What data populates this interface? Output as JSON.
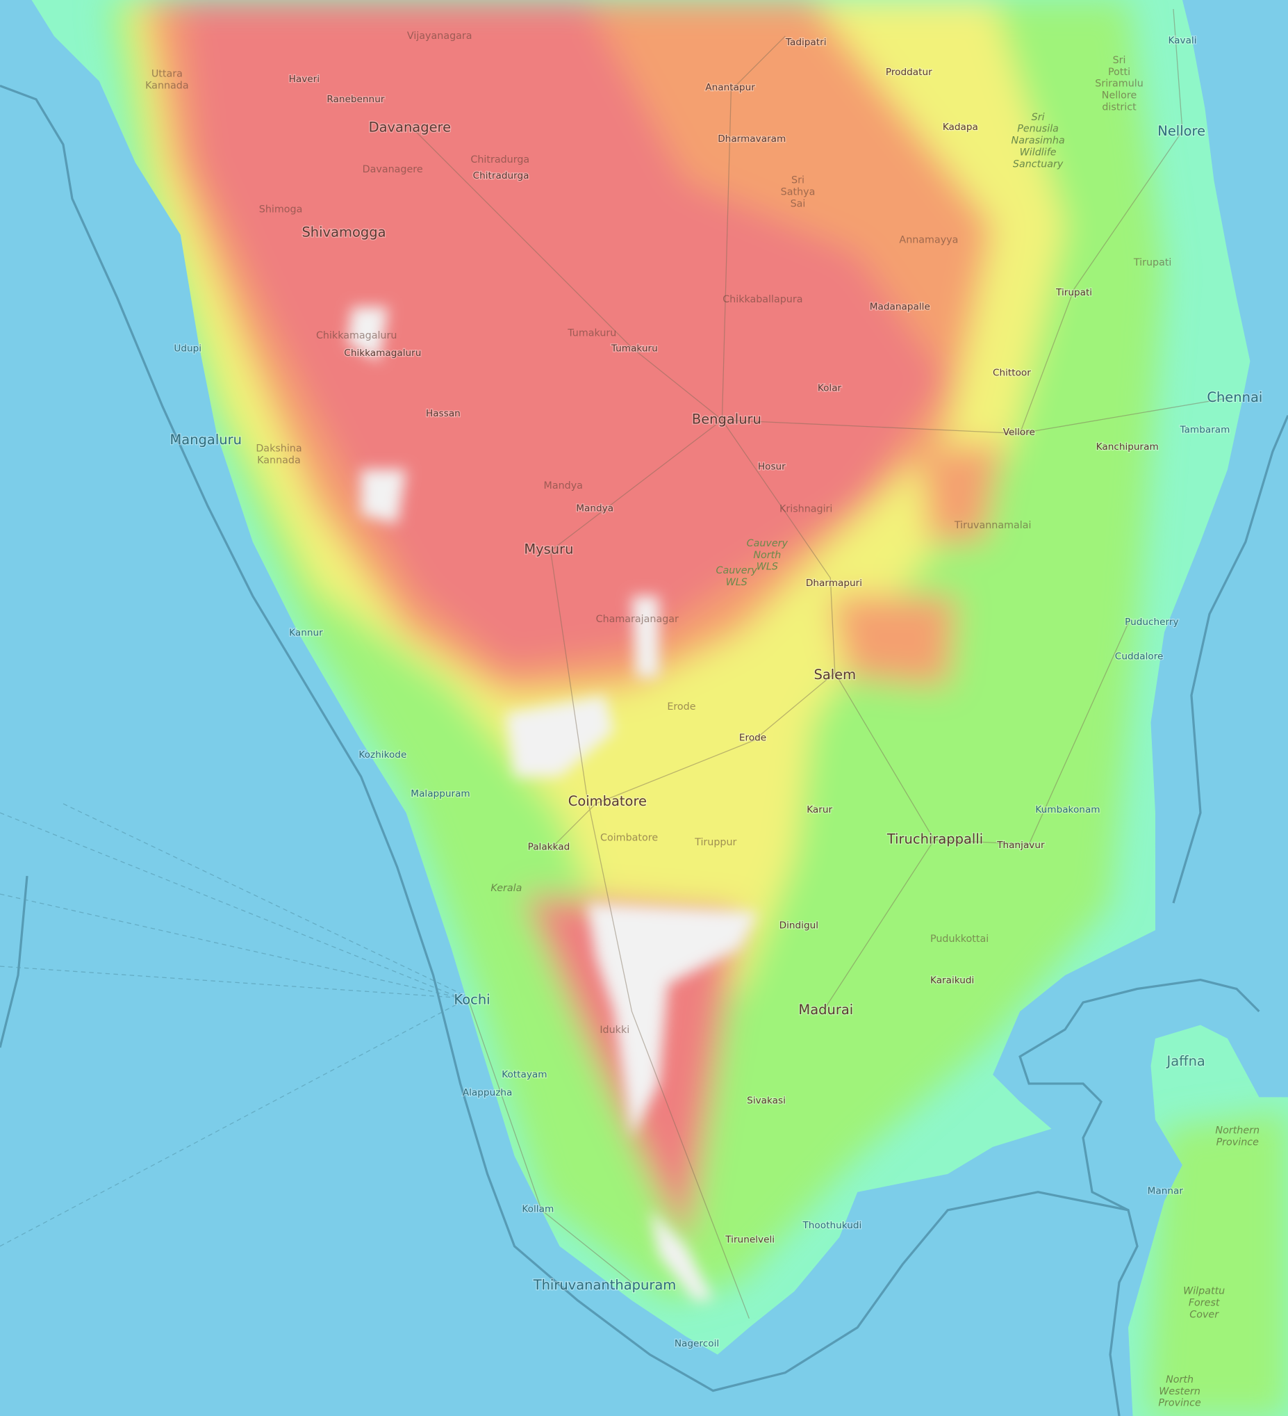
{
  "map": {
    "type": "topographic",
    "colors": {
      "sea": "#7ccde9",
      "lowland": "#8ff7c8",
      "plain": "#9ff37a",
      "midland": "#f2f27a",
      "upland": "#f4a070",
      "highland": "#ef7f7f",
      "peak": "#f2f2f2",
      "boundary": "#4d8fa8"
    },
    "labels": [
      "Vijayanagara",
      "Uttara Kannada",
      "Haveri",
      "Ranebennur",
      "Davanagere",
      "Davanagere",
      "Chitradurga",
      "Chitradurga",
      "Shimoga",
      "Shivamogga",
      "Tadipatri",
      "Proddatur",
      "Anantapur",
      "Dharmavaram",
      "Kadapa",
      "Sri Sathya Sai",
      "Annamayya",
      "Kavali",
      "Sri Potti Sriramulu Nellore district",
      "Nellore",
      "Sri Penusila Narasimha Wildlife Sanctuary",
      "Tirupati",
      "Tirupati",
      "Madanapalle",
      "Chikkaballapura",
      "Chikkamagaluru",
      "Chikkamagaluru",
      "Udupi",
      "Tumakuru",
      "Tumakuru",
      "Chittoor",
      "Kolar",
      "Chennai",
      "Tambaram",
      "Hassan",
      "Bengaluru",
      "Vellore",
      "Kanchipuram",
      "Mangaluru",
      "Dakshina Kannada",
      "Hosur",
      "Mandya",
      "Mandya",
      "Krishnagiri",
      "Tiruvannamalai",
      "Mysuru",
      "Cauvery North WLS",
      "Cauvery WLS",
      "Dharmapuri",
      "Kannur",
      "Chamarajanagar",
      "Puducherry",
      "Cuddalore",
      "Salem",
      "Erode",
      "Erode",
      "Kozhikode",
      "Malappuram",
      "Coimbatore",
      "Karur",
      "Kumbakonam",
      "Palakkad",
      "Coimbatore",
      "Tiruppur",
      "Tiruchirappalli",
      "Thanjavur",
      "Kerala",
      "Dindigul",
      "Pudukkottai",
      "Karaikudi",
      "Kochi",
      "Madurai",
      "Idukki",
      "Jaffna",
      "Kottayam",
      "Alappuzha",
      "Sivakasi",
      "Northern Province",
      "Mannar",
      "Kollam",
      "Thoothukudi",
      "Tirunelveli",
      "Thiruvananthapuram",
      "Wilpattu Forest Cover",
      "Nagercoil",
      "North Western Province"
    ]
  }
}
